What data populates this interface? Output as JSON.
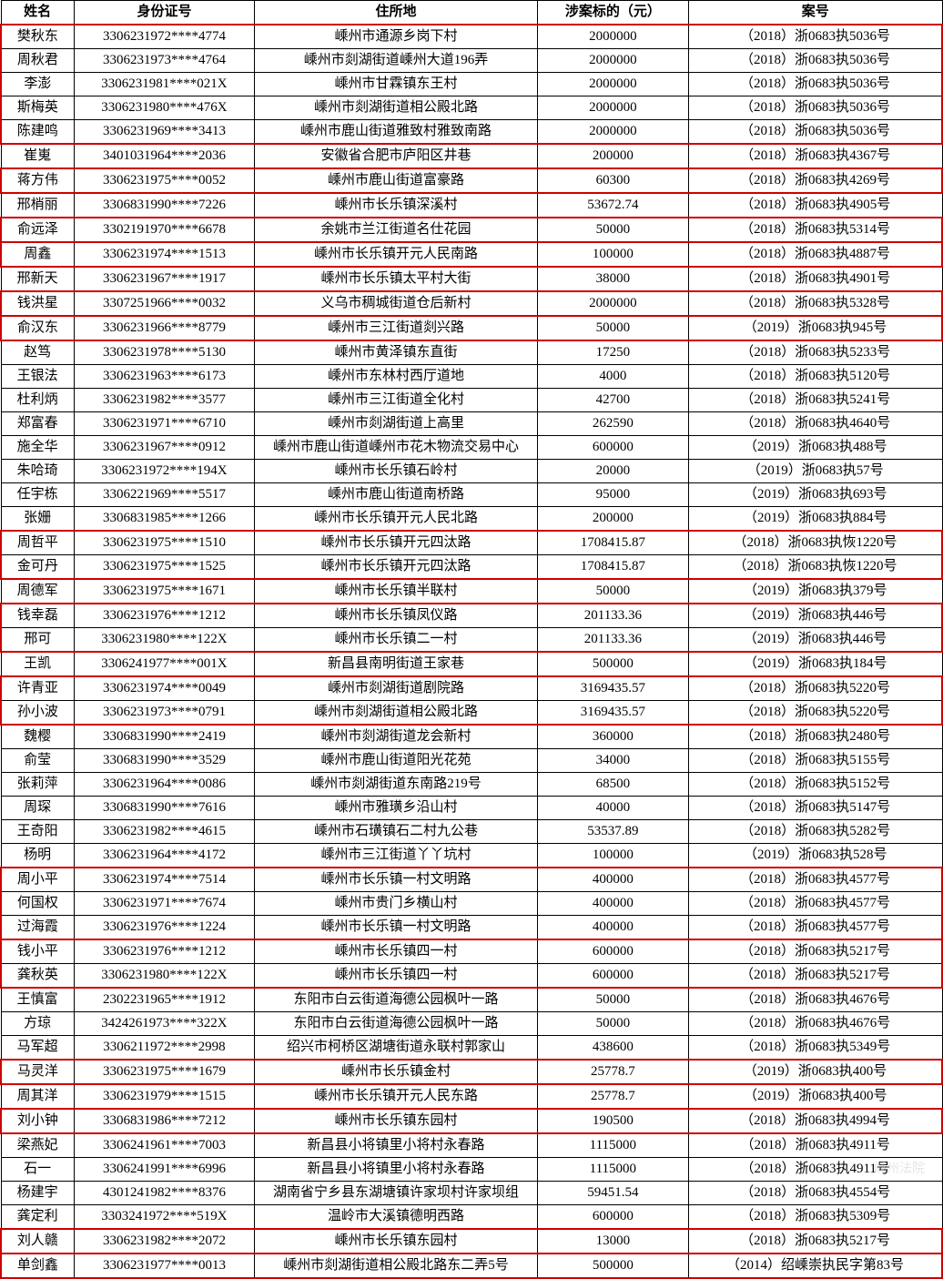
{
  "columns": [
    "姓名",
    "身份证号",
    "住所地",
    "涉案标的（元）",
    "案号"
  ],
  "rows": [
    {
      "name": "樊秋东",
      "id": "3306231972****4774",
      "addr": "嵊州市通源乡岗下村",
      "amount": "2000000",
      "case": "（2018）浙0683执5036号",
      "g": "t"
    },
    {
      "name": "周秋君",
      "id": "3306231973****4764",
      "addr": "嵊州市剡湖街道嵊州大道196弄",
      "amount": "2000000",
      "case": "（2018）浙0683执5036号",
      "g": "m"
    },
    {
      "name": "李澎",
      "id": "3306231981****021X",
      "addr": "嵊州市甘霖镇东王村",
      "amount": "2000000",
      "case": "（2018）浙0683执5036号",
      "g": "m"
    },
    {
      "name": "斯梅英",
      "id": "3306231980****476X",
      "addr": "嵊州市剡湖街道相公殿北路",
      "amount": "2000000",
      "case": "（2018）浙0683执5036号",
      "g": "m"
    },
    {
      "name": "陈建鸣",
      "id": "3306231969****3413",
      "addr": "嵊州市鹿山街道雅致村雅致南路",
      "amount": "2000000",
      "case": "（2018）浙0683执5036号",
      "g": "b"
    },
    {
      "name": "崔嵬",
      "id": "3401031964****2036",
      "addr": "安徽省合肥市庐阳区井巷",
      "amount": "200000",
      "case": "（2018）浙0683执4367号",
      "g": ""
    },
    {
      "name": "蒋方伟",
      "id": "3306231975****0052",
      "addr": "嵊州市鹿山街道富豪路",
      "amount": "60300",
      "case": "（2018）浙0683执4269号",
      "g": "s"
    },
    {
      "name": "邢梢丽",
      "id": "3306831990****7226",
      "addr": "嵊州市长乐镇深溪村",
      "amount": "53672.74",
      "case": "（2018）浙0683执4905号",
      "g": ""
    },
    {
      "name": "俞远泽",
      "id": "3302191970****6678",
      "addr": "余姚市兰江街道名仕花园",
      "amount": "50000",
      "case": "（2018）浙0683执5314号",
      "g": "s"
    },
    {
      "name": "周鑫",
      "id": "3306231974****1513",
      "addr": "嵊州市长乐镇开元人民南路",
      "amount": "100000",
      "case": "（2018）浙0683执4887号",
      "g": "s"
    },
    {
      "name": "邢新天",
      "id": "3306231967****1917",
      "addr": "嵊州市长乐镇太平村大街",
      "amount": "38000",
      "case": "（2018）浙0683执4901号",
      "g": ""
    },
    {
      "name": "钱洪星",
      "id": "3307251966****0032",
      "addr": "义乌市稠城街道仓后新村",
      "amount": "2000000",
      "case": "（2018）浙0683执5328号",
      "g": "s"
    },
    {
      "name": "俞汉东",
      "id": "3306231966****8779",
      "addr": "嵊州市三江街道剡兴路",
      "amount": "50000",
      "case": "（2019）浙0683执945号",
      "g": "s"
    },
    {
      "name": "赵笃",
      "id": "3306231978****5130",
      "addr": "嵊州市黄泽镇东直街",
      "amount": "17250",
      "case": "（2018）浙0683执5233号",
      "g": ""
    },
    {
      "name": "王银法",
      "id": "3306231963****6173",
      "addr": "嵊州市东林村西厅道地",
      "amount": "4000",
      "case": "（2018）浙0683执5120号",
      "g": ""
    },
    {
      "name": "杜利炳",
      "id": "3306231982****3577",
      "addr": "嵊州市三江街道全化村",
      "amount": "42700",
      "case": "（2018）浙0683执5241号",
      "g": ""
    },
    {
      "name": "郑富春",
      "id": "3306231971****6710",
      "addr": "嵊州市剡湖街道上高里",
      "amount": "262590",
      "case": "（2018）浙0683执4640号",
      "g": ""
    },
    {
      "name": "施全华",
      "id": "3306231967****0912",
      "addr": "嵊州市鹿山街道嵊州市花木物流交易中心",
      "amount": "600000",
      "case": "（2019）浙0683执488号",
      "g": ""
    },
    {
      "name": "朱哈琦",
      "id": "3306231972****194X",
      "addr": "嵊州市长乐镇石岭村",
      "amount": "20000",
      "case": "（2019）浙0683执57号",
      "g": ""
    },
    {
      "name": "任宇栋",
      "id": "3306221969****5517",
      "addr": "嵊州市鹿山街道南桥路",
      "amount": "95000",
      "case": "（2019）浙0683执693号",
      "g": ""
    },
    {
      "name": "张姗",
      "id": "3306831985****1266",
      "addr": "嵊州市长乐镇开元人民北路",
      "amount": "200000",
      "case": "（2019）浙0683执884号",
      "g": ""
    },
    {
      "name": "周哲平",
      "id": "3306231975****1510",
      "addr": "嵊州市长乐镇开元四汰路",
      "amount": "1708415.87",
      "case": "（2018）浙0683执恢1220号",
      "g": "t"
    },
    {
      "name": "金可丹",
      "id": "3306231975****1525",
      "addr": "嵊州市长乐镇开元四汰路",
      "amount": "1708415.87",
      "case": "（2018）浙0683执恢1220号",
      "g": "b"
    },
    {
      "name": "周德军",
      "id": "3306231975****1671",
      "addr": "嵊州市长乐镇半联村",
      "amount": "50000",
      "case": "（2019）浙0683执379号",
      "g": ""
    },
    {
      "name": "钱幸磊",
      "id": "3306231976****1212",
      "addr": "嵊州市长乐镇凤仪路",
      "amount": "201133.36",
      "case": "（2019）浙0683执446号",
      "g": "t"
    },
    {
      "name": "邢可",
      "id": "3306231980****122X",
      "addr": "嵊州市长乐镇二一村",
      "amount": "201133.36",
      "case": "（2019）浙0683执446号",
      "g": "b"
    },
    {
      "name": "王凯",
      "id": "3306241977****001X",
      "addr": "新昌县南明街道王家巷",
      "amount": "500000",
      "case": "（2019）浙0683执184号",
      "g": ""
    },
    {
      "name": "许青亚",
      "id": "3306231974****0049",
      "addr": "嵊州市剡湖街道剧院路",
      "amount": "3169435.57",
      "case": "（2018）浙0683执5220号",
      "g": "t"
    },
    {
      "name": "孙小波",
      "id": "3306231973****0791",
      "addr": "嵊州市剡湖街道相公殿北路",
      "amount": "3169435.57",
      "case": "（2018）浙0683执5220号",
      "g": "b"
    },
    {
      "name": "魏樱",
      "id": "3306831990****2419",
      "addr": "嵊州市剡湖街道龙会新村",
      "amount": "360000",
      "case": "（2018）浙0683执2480号",
      "g": ""
    },
    {
      "name": "俞莹",
      "id": "3306831990****3529",
      "addr": "嵊州市鹿山街道阳光花苑",
      "amount": "34000",
      "case": "（2018）浙0683执5155号",
      "g": ""
    },
    {
      "name": "张莉萍",
      "id": "3306231964****0086",
      "addr": "嵊州市剡湖街道东南路219号",
      "amount": "68500",
      "case": "（2018）浙0683执5152号",
      "g": ""
    },
    {
      "name": "周琛",
      "id": "3306831990****7616",
      "addr": "嵊州市雅璜乡沿山村",
      "amount": "40000",
      "case": "（2018）浙0683执5147号",
      "g": ""
    },
    {
      "name": "王奇阳",
      "id": "3306231982****4615",
      "addr": "嵊州市石璜镇石二村九公巷",
      "amount": "53537.89",
      "case": "（2018）浙0683执5282号",
      "g": ""
    },
    {
      "name": "杨明",
      "id": "3306231964****4172",
      "addr": "嵊州市三江街道丫丫坑村",
      "amount": "100000",
      "case": "（2019）浙0683执528号",
      "g": ""
    },
    {
      "name": "周小平",
      "id": "3306231974****7514",
      "addr": "嵊州市长乐镇一村文明路",
      "amount": "400000",
      "case": "（2018）浙0683执4577号",
      "g": "t"
    },
    {
      "name": "何国权",
      "id": "3306231971****7674",
      "addr": "嵊州市贵门乡横山村",
      "amount": "400000",
      "case": "（2018）浙0683执4577号",
      "g": "m"
    },
    {
      "name": "过海霞",
      "id": "3306231976****1224",
      "addr": "嵊州市长乐镇一村文明路",
      "amount": "400000",
      "case": "（2018）浙0683执4577号",
      "g": "b"
    },
    {
      "name": "钱小平",
      "id": "3306231976****1212",
      "addr": "嵊州市长乐镇四一村",
      "amount": "600000",
      "case": "（2018）浙0683执5217号",
      "g": "t"
    },
    {
      "name": "龚秋英",
      "id": "3306231980****122X",
      "addr": "嵊州市长乐镇四一村",
      "amount": "600000",
      "case": "（2018）浙0683执5217号",
      "g": "b"
    },
    {
      "name": "王慎富",
      "id": "2302231965****1912",
      "addr": "东阳市白云街道海德公园枫叶一路",
      "amount": "50000",
      "case": "（2018）浙0683执4676号",
      "g": ""
    },
    {
      "name": "方琼",
      "id": "3424261973****322X",
      "addr": "东阳市白云街道海德公园枫叶一路",
      "amount": "50000",
      "case": "（2018）浙0683执4676号",
      "g": ""
    },
    {
      "name": "马军超",
      "id": "3306211972****2998",
      "addr": "绍兴市柯桥区湖塘街道永联村郭家山",
      "amount": "438600",
      "case": "（2018）浙0683执5349号",
      "g": ""
    },
    {
      "name": "马灵洋",
      "id": "3306231975****1679",
      "addr": "嵊州市长乐镇金村",
      "amount": "25778.7",
      "case": "（2019）浙0683执400号",
      "g": "s"
    },
    {
      "name": "周其洋",
      "id": "3306231979****1515",
      "addr": "嵊州市长乐镇开元人民东路",
      "amount": "25778.7",
      "case": "（2019）浙0683执400号",
      "g": ""
    },
    {
      "name": "刘小钟",
      "id": "3306831986****7212",
      "addr": "嵊州市长乐镇东园村",
      "amount": "190500",
      "case": "（2018）浙0683执4994号",
      "g": "s"
    },
    {
      "name": "梁燕妃",
      "id": "3306241961****7003",
      "addr": "新昌县小将镇里小将村永春路",
      "amount": "1115000",
      "case": "（2018）浙0683执4911号",
      "g": ""
    },
    {
      "name": "石一",
      "id": "3306241991****6996",
      "addr": "新昌县小将镇里小将村永春路",
      "amount": "1115000",
      "case": "（2018）浙0683执4911号",
      "g": ""
    },
    {
      "name": "杨建宇",
      "id": "4301241982****8376",
      "addr": "湖南省宁乡县东湖塘镇许家坝村许家坝组",
      "amount": "59451.54",
      "case": "（2018）浙0683执4554号",
      "g": ""
    },
    {
      "name": "龚定利",
      "id": "3303241972****519X",
      "addr": "温岭市大溪镇德明西路",
      "amount": "600000",
      "case": "（2018）浙0683执5309号",
      "g": ""
    },
    {
      "name": "刘人赣",
      "id": "3306231982****2072",
      "addr": "嵊州市长乐镇东园村",
      "amount": "13000",
      "case": "（2018）浙0683执5217号",
      "g": "s"
    },
    {
      "name": "单剑鑫",
      "id": "3306231977****0013",
      "addr": "嵊州市剡湖街道相公殿北路东二弄5号",
      "amount": "500000",
      "case": "（2014）绍嵊崇执民字第83号",
      "g": "s"
    }
  ],
  "watermark": "嵊州法院"
}
